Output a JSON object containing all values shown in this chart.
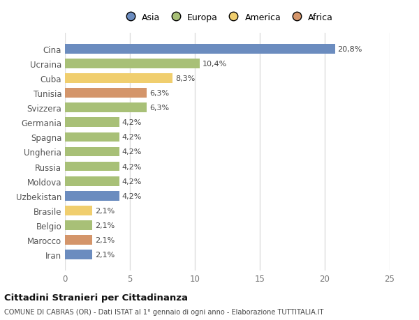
{
  "categories": [
    "Iran",
    "Marocco",
    "Belgio",
    "Brasile",
    "Uzbekistan",
    "Moldova",
    "Russia",
    "Ungheria",
    "Spagna",
    "Germania",
    "Svizzera",
    "Tunisia",
    "Cuba",
    "Ucraina",
    "Cina"
  ],
  "values": [
    2.1,
    2.1,
    2.1,
    2.1,
    4.2,
    4.2,
    4.2,
    4.2,
    4.2,
    4.2,
    6.3,
    6.3,
    8.3,
    10.4,
    20.8
  ],
  "colors": [
    "#6b8cbf",
    "#d4956a",
    "#a8c077",
    "#f0ce6e",
    "#6b8cbf",
    "#a8c077",
    "#a8c077",
    "#a8c077",
    "#a8c077",
    "#a8c077",
    "#a8c077",
    "#d4956a",
    "#f0ce6e",
    "#a8c077",
    "#6b8cbf"
  ],
  "labels": [
    "2,1%",
    "2,1%",
    "2,1%",
    "2,1%",
    "4,2%",
    "4,2%",
    "4,2%",
    "4,2%",
    "4,2%",
    "4,2%",
    "6,3%",
    "6,3%",
    "8,3%",
    "10,4%",
    "20,8%"
  ],
  "legend": [
    {
      "label": "Asia",
      "color": "#6b8cbf"
    },
    {
      "label": "Europa",
      "color": "#a8c077"
    },
    {
      "label": "America",
      "color": "#f0ce6e"
    },
    {
      "label": "Africa",
      "color": "#d4956a"
    }
  ],
  "xlim": [
    0,
    25
  ],
  "xticks": [
    0,
    5,
    10,
    15,
    20,
    25
  ],
  "title": "Cittadini Stranieri per Cittadinanza",
  "subtitle": "COMUNE DI CABRAS (OR) - Dati ISTAT al 1° gennaio di ogni anno - Elaborazione TUTTITALIA.IT",
  "bg_color": "#ffffff",
  "plot_bg_color": "#ffffff",
  "grid_color": "#e8e8e8",
  "bar_height": 0.65,
  "label_fontsize": 8,
  "tick_fontsize": 8.5,
  "legend_fontsize": 9
}
